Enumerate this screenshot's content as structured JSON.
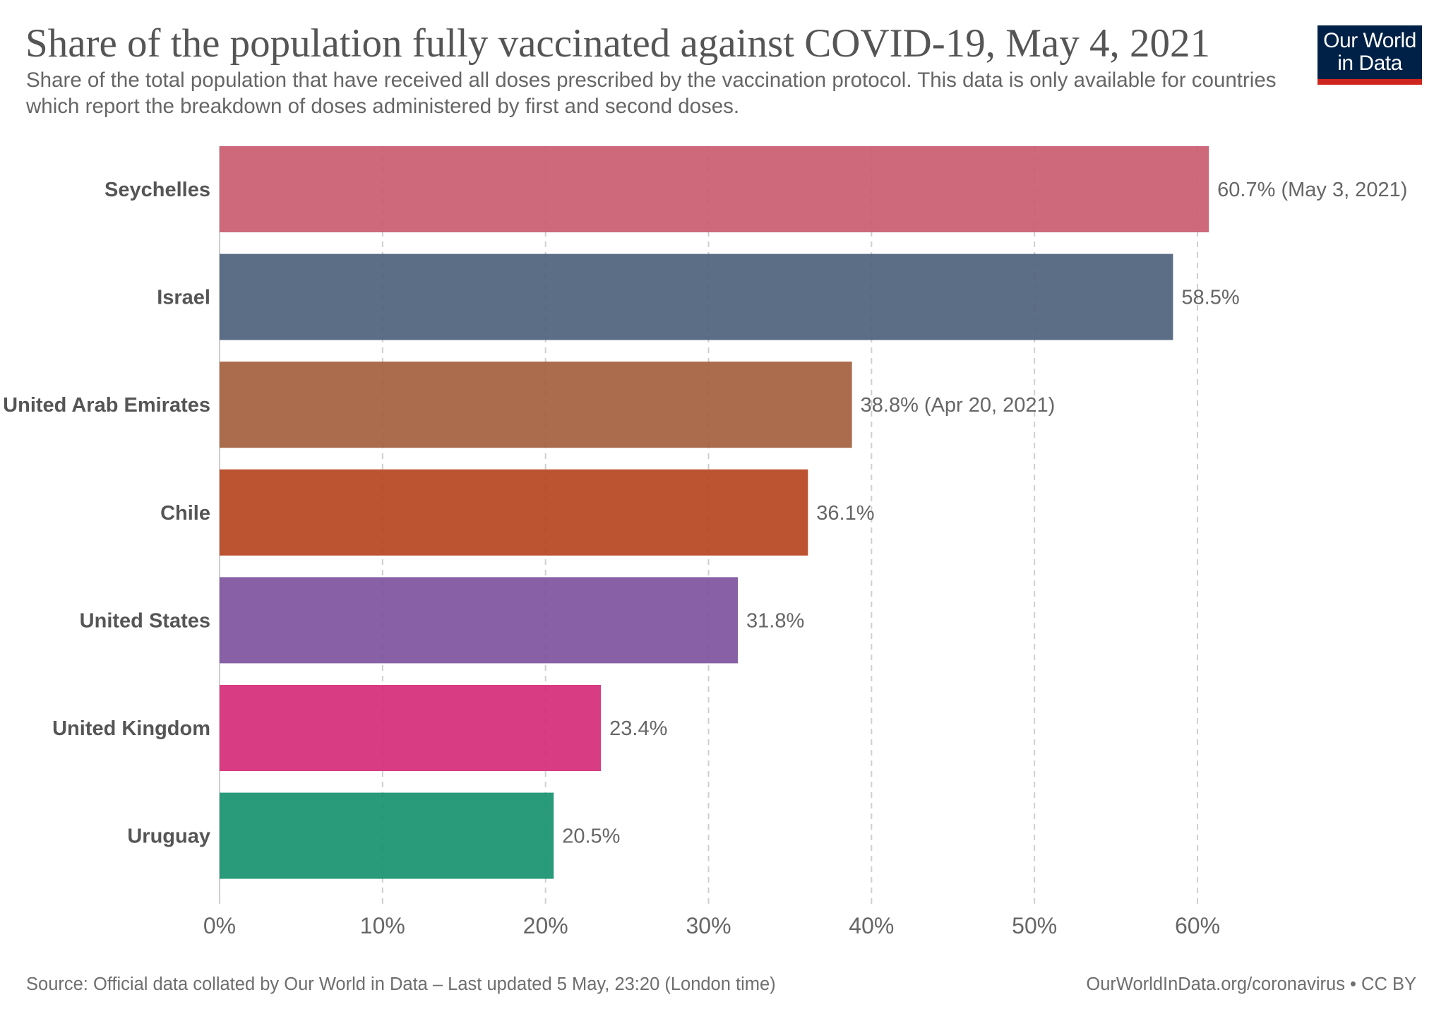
{
  "header": {
    "title": "Share of the population fully vaccinated against COVID-19, May 4, 2021",
    "subtitle": "Share of the total population that have received all doses prescribed by the vaccination protocol. This data is only available for countries which report the breakdown of doses administered by first and second doses."
  },
  "logo": {
    "line1": "Our World",
    "line2": "in Data"
  },
  "footer": {
    "source": "Source: Official data collated by Our World in Data – Last updated 5 May, 23:20 (London time)",
    "license": "OurWorldInData.org/coronavirus • CC BY"
  },
  "chart_data": {
    "type": "bar",
    "orientation": "horizontal",
    "title": "Share of the population fully vaccinated against COVID-19, May 4, 2021",
    "categories": [
      "Seychelles",
      "Israel",
      "United Arab Emirates",
      "Chile",
      "United States",
      "United Kingdom",
      "Uruguay"
    ],
    "values": [
      60.7,
      58.5,
      38.8,
      36.1,
      31.8,
      23.4,
      20.5
    ],
    "value_labels": [
      "60.7% (May 3, 2021)",
      "58.5%",
      "38.8% (Apr 20, 2021)",
      "36.1%",
      "31.8%",
      "23.4%",
      "20.5%"
    ],
    "colors": [
      "#c8596d",
      "#4a5d79",
      "#a15c39",
      "#b5401b",
      "#7a4f9b",
      "#d42876",
      "#12906c"
    ],
    "xticks": [
      "0%",
      "10%",
      "20%",
      "30%",
      "40%",
      "50%",
      "60%"
    ],
    "xlim": [
      0,
      60
    ],
    "unit": "%",
    "grid": true
  }
}
